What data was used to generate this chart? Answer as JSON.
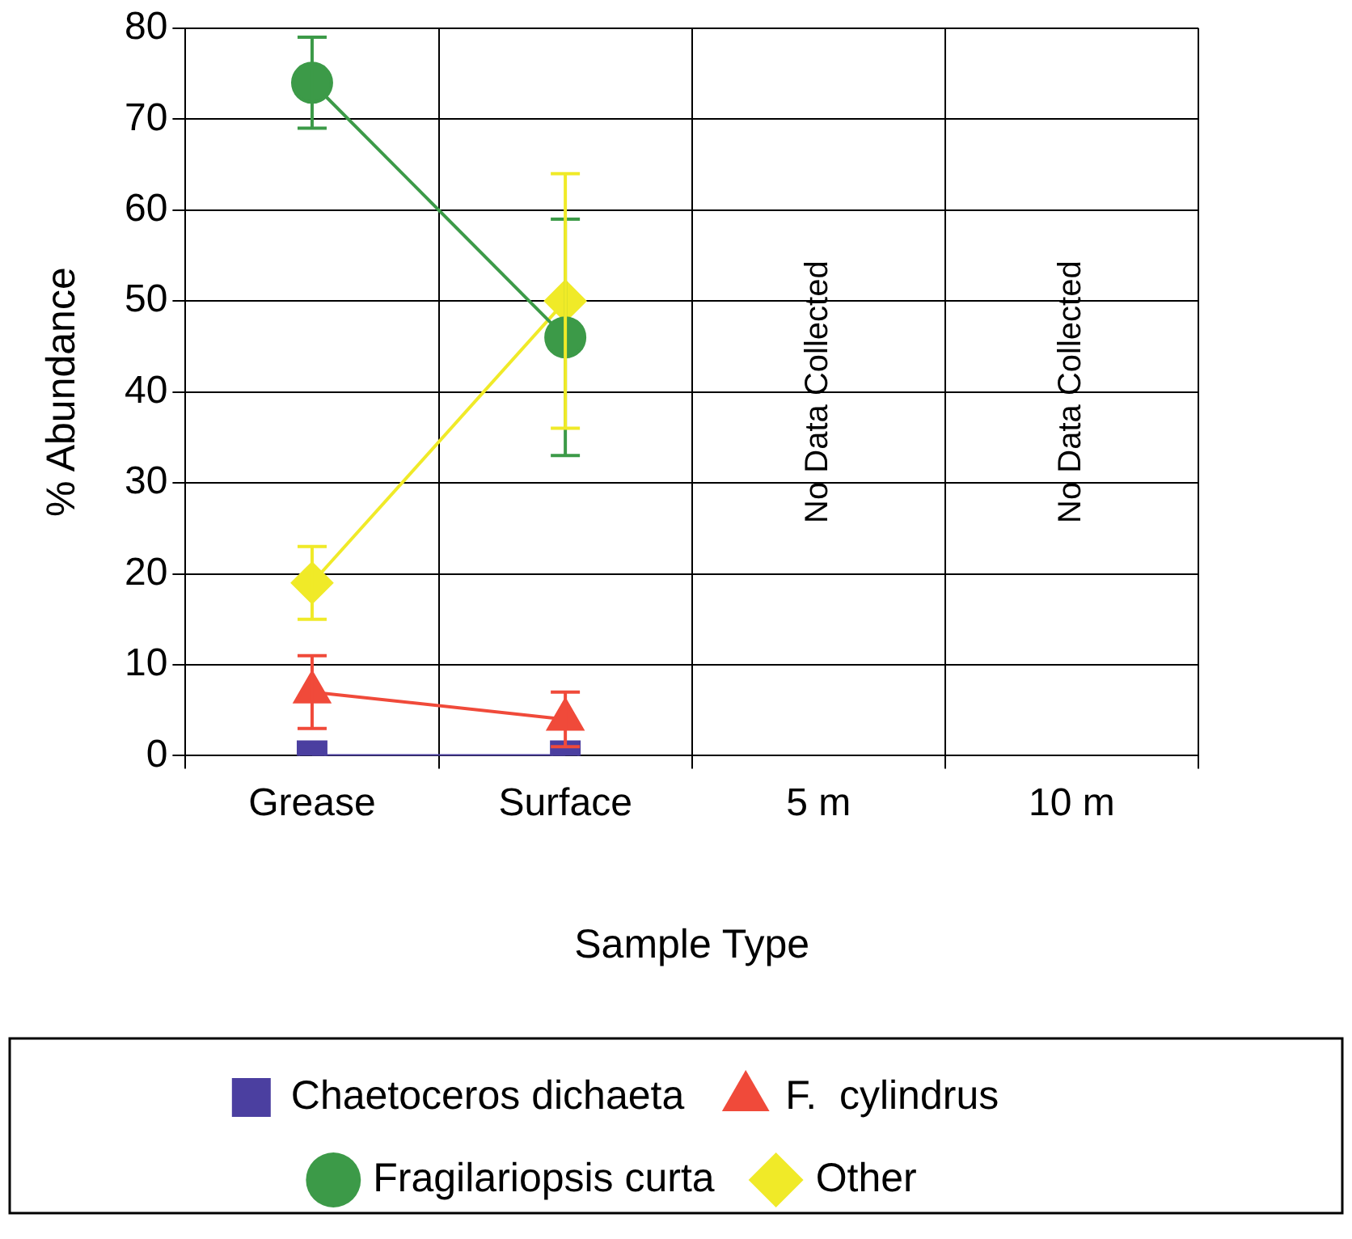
{
  "chart_data": {
    "type": "line",
    "xlabel": "Sample Type",
    "ylabel": "% Abundance",
    "categories": [
      "Grease",
      "Surface",
      "5 m",
      "10 m"
    ],
    "series": [
      {
        "name": "Chaetoceros dichaeta",
        "color": "#4b3fa0",
        "marker": "square",
        "values": [
          0,
          0,
          null,
          null
        ]
      },
      {
        "name": "F.  cylindrus",
        "color": "#f04a3a",
        "marker": "triangle",
        "values": [
          7,
          4,
          null,
          null
        ],
        "errors": [
          [
            3,
            11
          ],
          [
            1,
            7
          ],
          null,
          null
        ]
      },
      {
        "name": "Fragilariopsis curta",
        "color": "#3c9a48",
        "marker": "circle",
        "values": [
          74,
          46,
          null,
          null
        ],
        "errors": [
          [
            69,
            79
          ],
          [
            33,
            59
          ],
          null,
          null
        ]
      },
      {
        "name": "Other",
        "color": "#f0ea28",
        "marker": "diamond",
        "values": [
          19,
          50,
          null,
          null
        ],
        "errors": [
          [
            15,
            23
          ],
          [
            36,
            64
          ],
          null,
          null
        ]
      }
    ],
    "ylim": [
      0,
      80
    ],
    "yticks": [
      0,
      10,
      20,
      30,
      40,
      50,
      60,
      70,
      80
    ],
    "grid": true,
    "legend": "bottom",
    "annotations": [
      "No Data Collected",
      "No Data Collected"
    ]
  }
}
